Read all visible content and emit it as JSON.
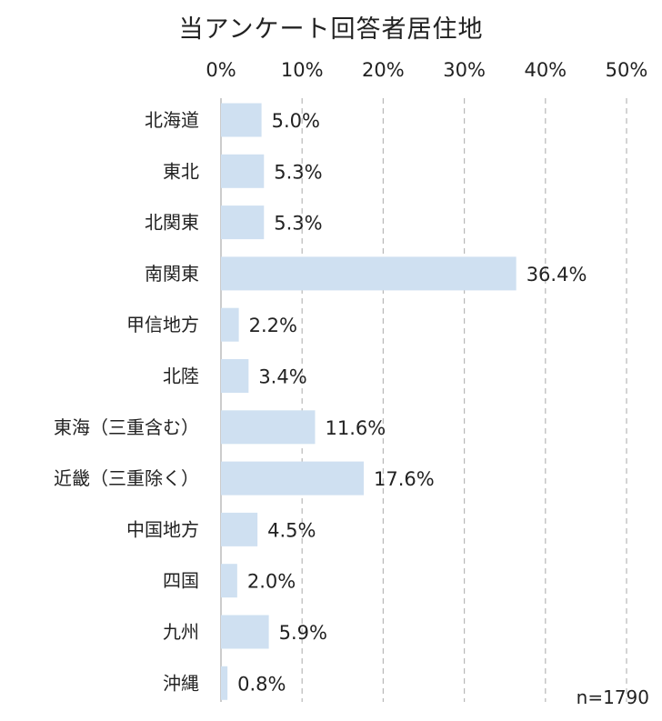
{
  "chart_data": {
    "type": "bar",
    "orientation": "horizontal",
    "title": "当アンケート回答者居住地",
    "categories": [
      "北海道",
      "東北",
      "北関東",
      "南関東",
      "甲信地方",
      "北陸",
      "東海（三重含む）",
      "近畿（三重除く）",
      "中国地方",
      "四国",
      "九州",
      "沖縄"
    ],
    "values": [
      5.0,
      5.3,
      5.3,
      36.4,
      2.2,
      3.4,
      11.6,
      17.6,
      4.5,
      2.0,
      5.9,
      0.8
    ],
    "value_labels": [
      "5.0%",
      "5.3%",
      "5.3%",
      "36.4%",
      "2.2%",
      "3.4%",
      "11.6%",
      "17.6%",
      "4.5%",
      "2.0%",
      "5.9%",
      "0.8%"
    ],
    "xlim": [
      0,
      50
    ],
    "xticks": [
      0,
      10,
      20,
      30,
      40,
      50
    ],
    "xtick_labels": [
      "0%",
      "10%",
      "20%",
      "30%",
      "40%",
      "50%"
    ],
    "x_axis_position": "top",
    "grid": "vertical dashed",
    "legend": "none",
    "note": "n=1790",
    "colors": {
      "bar": "#cfe0f1",
      "grid": "#b8b8b8",
      "axis": "#aaaaaa",
      "text": "#222222"
    }
  }
}
